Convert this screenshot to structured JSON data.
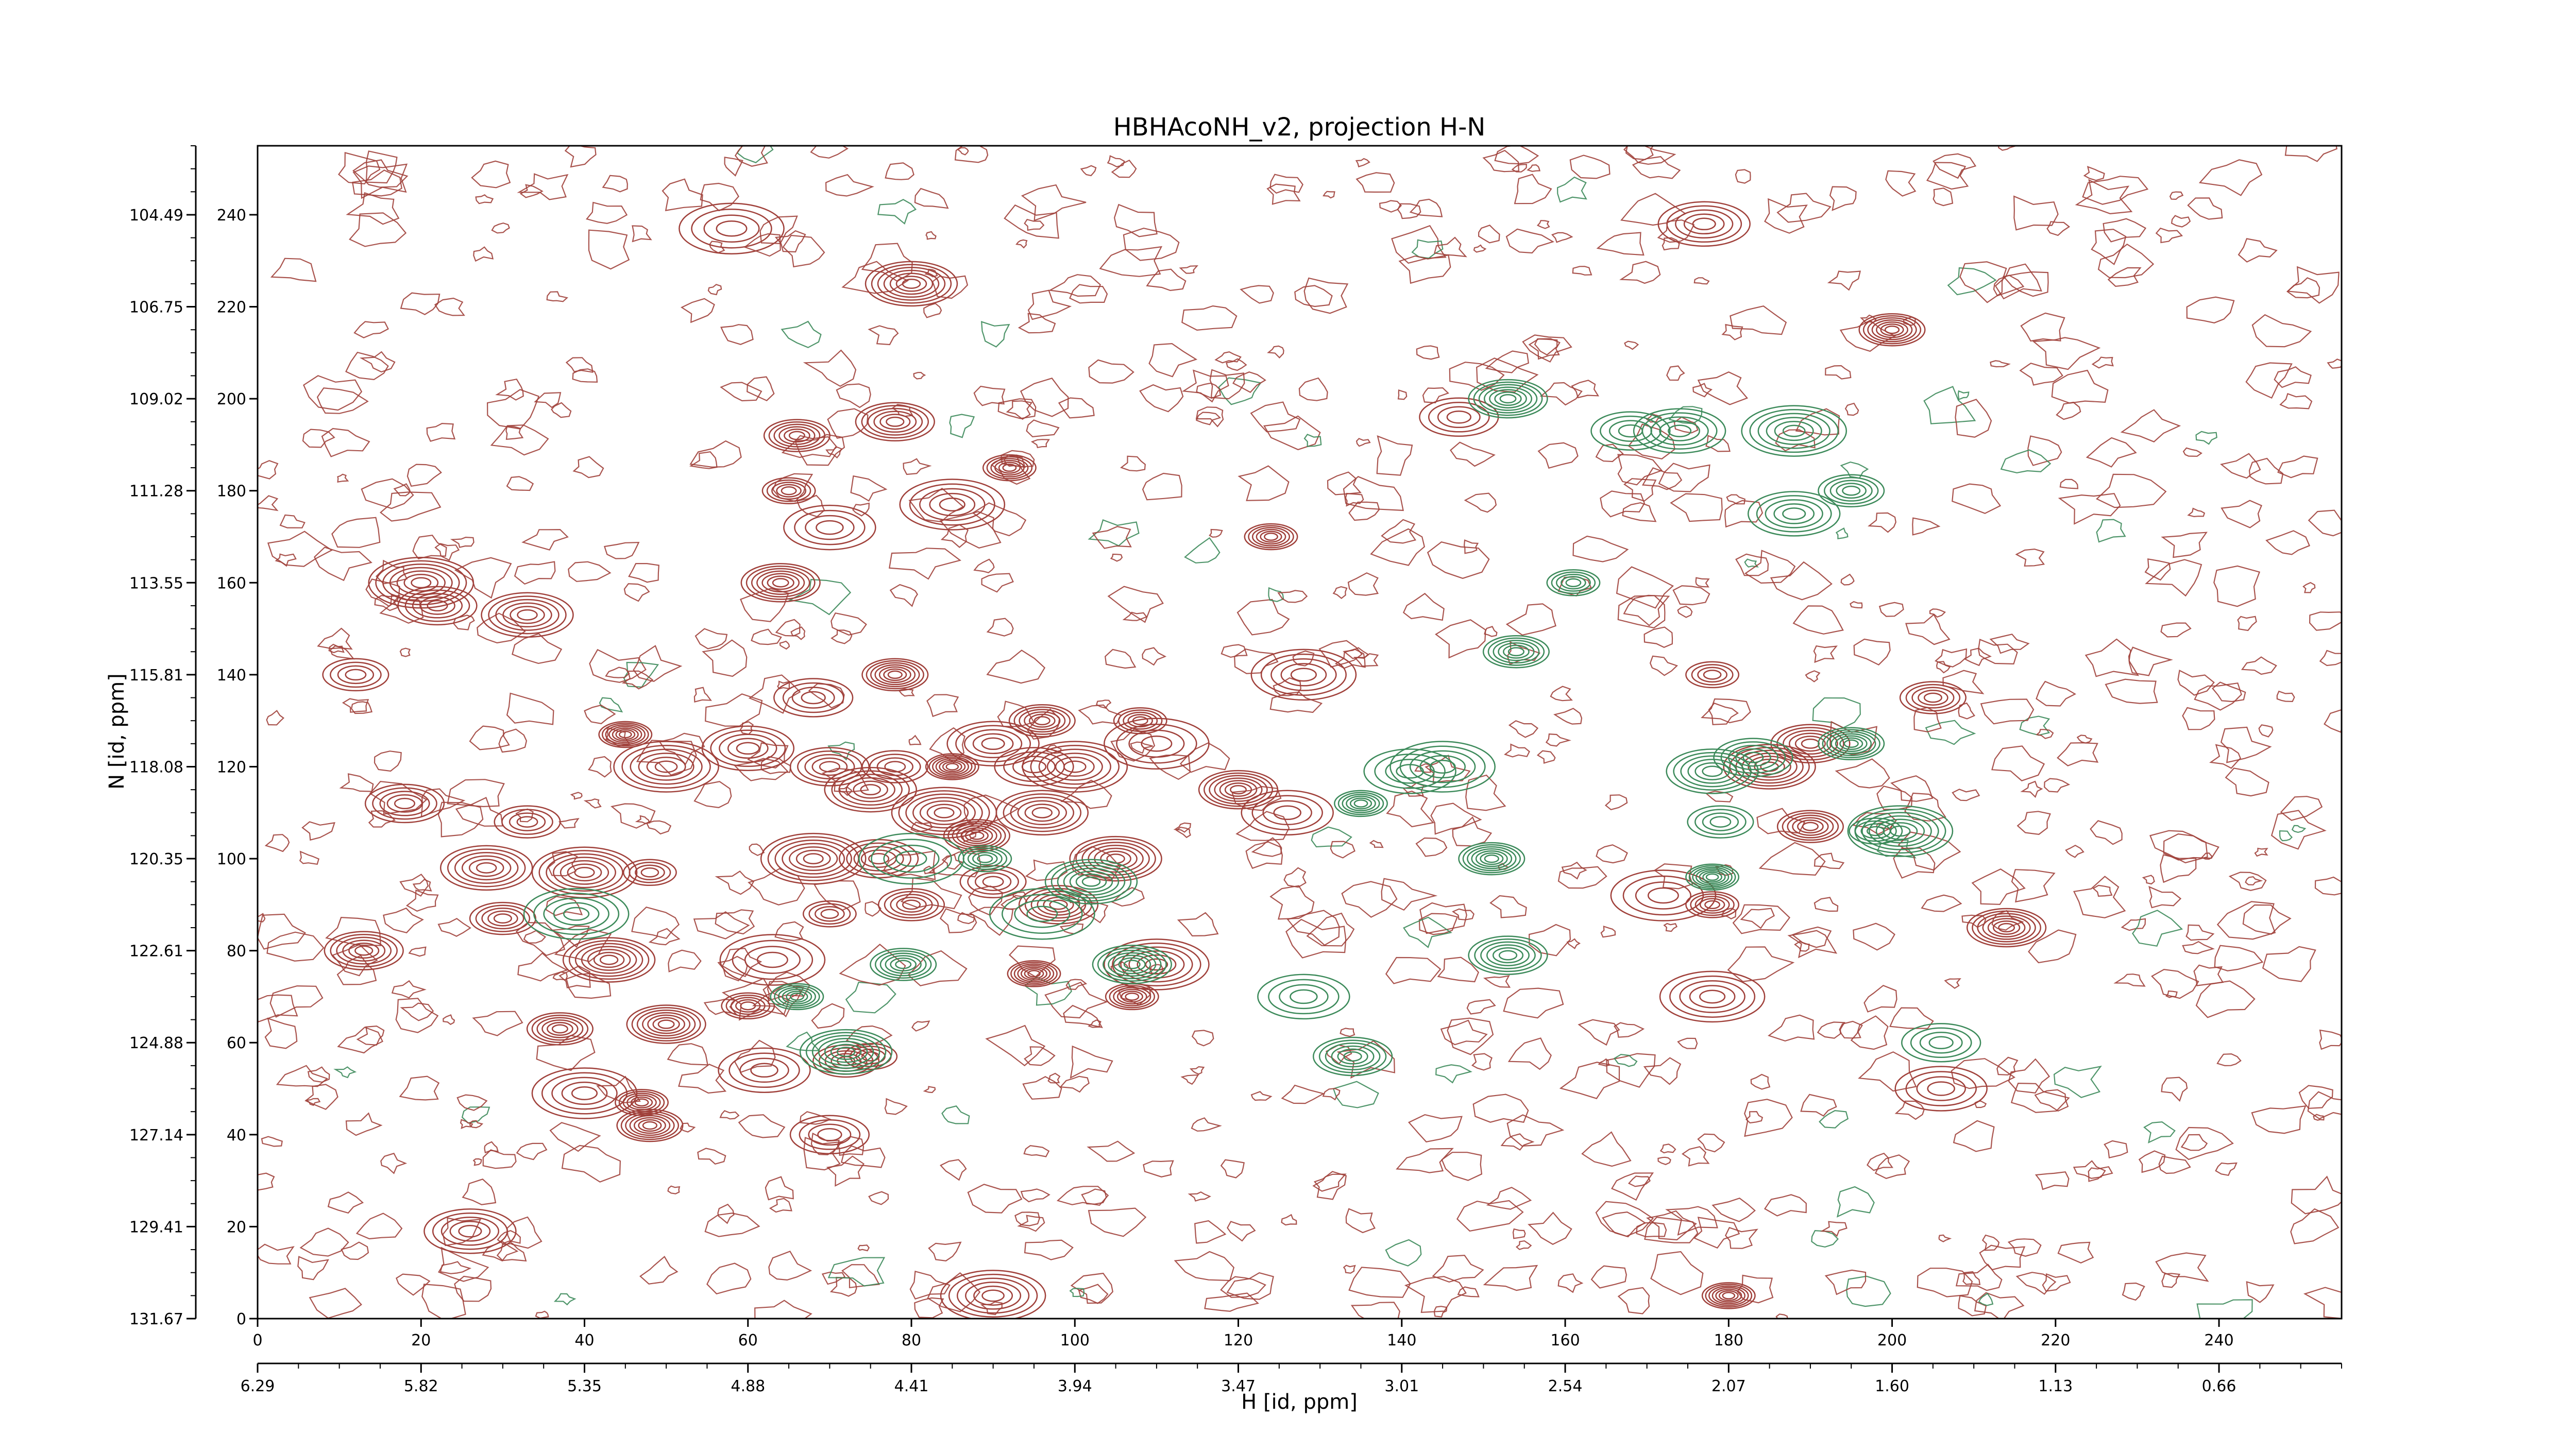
{
  "chart_data": {
    "type": "contour",
    "title": "HBHAcoNH_v2, projection H-N",
    "xlabel": "H [id, ppm]",
    "ylabel": "N [id, ppm]",
    "x_index_ticks": [
      0,
      20,
      40,
      60,
      80,
      100,
      120,
      140,
      160,
      180,
      200,
      220,
      240
    ],
    "x_ppm_ticks": [
      "6.29",
      "5.82",
      "5.35",
      "4.88",
      "4.41",
      "3.94",
      "3.47",
      "3.01",
      "2.54",
      "2.07",
      "1.60",
      "1.13",
      "0.66"
    ],
    "y_index_ticks": [
      0,
      20,
      40,
      60,
      80,
      100,
      120,
      140,
      160,
      180,
      200,
      220,
      240
    ],
    "y_ppm_ticks": [
      "131.67",
      "129.41",
      "127.14",
      "124.88",
      "122.61",
      "120.35",
      "118.08",
      "115.81",
      "113.55",
      "111.28",
      "109.02",
      "106.75",
      "104.49"
    ],
    "xlim": [
      0,
      255
    ],
    "ylim": [
      0,
      255
    ],
    "positive_color": "#a0403a",
    "negative_color": "#3c8a5a",
    "positive_peaks": [
      {
        "x": 75,
        "y": 57
      },
      {
        "x": 72,
        "y": 56
      },
      {
        "x": 78,
        "y": 195
      },
      {
        "x": 80,
        "y": 225
      },
      {
        "x": 58,
        "y": 237
      },
      {
        "x": 65,
        "y": 180
      },
      {
        "x": 66,
        "y": 192
      },
      {
        "x": 64,
        "y": 160
      },
      {
        "x": 70,
        "y": 172
      },
      {
        "x": 85,
        "y": 177
      },
      {
        "x": 92,
        "y": 185
      },
      {
        "x": 88,
        "y": 105
      },
      {
        "x": 95,
        "y": 120
      },
      {
        "x": 90,
        "y": 125
      },
      {
        "x": 100,
        "y": 120
      },
      {
        "x": 85,
        "y": 120
      },
      {
        "x": 78,
        "y": 120
      },
      {
        "x": 70,
        "y": 120
      },
      {
        "x": 75,
        "y": 115
      },
      {
        "x": 68,
        "y": 100
      },
      {
        "x": 70,
        "y": 88
      },
      {
        "x": 80,
        "y": 90
      },
      {
        "x": 98,
        "y": 90
      },
      {
        "x": 105,
        "y": 100
      },
      {
        "x": 110,
        "y": 125
      },
      {
        "x": 108,
        "y": 130
      },
      {
        "x": 96,
        "y": 130
      },
      {
        "x": 120,
        "y": 115
      },
      {
        "x": 126,
        "y": 110
      },
      {
        "x": 128,
        "y": 140
      },
      {
        "x": 124,
        "y": 170
      },
      {
        "x": 78,
        "y": 140
      },
      {
        "x": 68,
        "y": 135
      },
      {
        "x": 60,
        "y": 124
      },
      {
        "x": 50,
        "y": 120
      },
      {
        "x": 45,
        "y": 127
      },
      {
        "x": 33,
        "y": 108
      },
      {
        "x": 18,
        "y": 112
      },
      {
        "x": 28,
        "y": 98
      },
      {
        "x": 40,
        "y": 97
      },
      {
        "x": 48,
        "y": 97
      },
      {
        "x": 30,
        "y": 87
      },
      {
        "x": 13,
        "y": 80
      },
      {
        "x": 43,
        "y": 78
      },
      {
        "x": 63,
        "y": 78
      },
      {
        "x": 60,
        "y": 68
      },
      {
        "x": 37,
        "y": 63
      },
      {
        "x": 50,
        "y": 64
      },
      {
        "x": 62,
        "y": 54
      },
      {
        "x": 40,
        "y": 49
      },
      {
        "x": 47,
        "y": 47
      },
      {
        "x": 48,
        "y": 42
      },
      {
        "x": 70,
        "y": 40
      },
      {
        "x": 26,
        "y": 19
      },
      {
        "x": 90,
        "y": 5
      },
      {
        "x": 180,
        "y": 5
      },
      {
        "x": 12,
        "y": 140
      },
      {
        "x": 22,
        "y": 155
      },
      {
        "x": 33,
        "y": 153
      },
      {
        "x": 20,
        "y": 160
      },
      {
        "x": 178,
        "y": 140
      },
      {
        "x": 205,
        "y": 135
      },
      {
        "x": 190,
        "y": 125
      },
      {
        "x": 185,
        "y": 120
      },
      {
        "x": 172,
        "y": 92
      },
      {
        "x": 178,
        "y": 90
      },
      {
        "x": 190,
        "y": 107
      },
      {
        "x": 214,
        "y": 85
      },
      {
        "x": 206,
        "y": 50
      },
      {
        "x": 178,
        "y": 70
      },
      {
        "x": 107,
        "y": 70
      },
      {
        "x": 200,
        "y": 215
      },
      {
        "x": 147,
        "y": 196
      },
      {
        "x": 177,
        "y": 238
      },
      {
        "x": 110,
        "y": 77
      },
      {
        "x": 95,
        "y": 75
      },
      {
        "x": 90,
        "y": 95
      },
      {
        "x": 76,
        "y": 100
      },
      {
        "x": 96,
        "y": 110
      },
      {
        "x": 84,
        "y": 110
      }
    ],
    "negative_peaks": [
      {
        "x": 134,
        "y": 57
      },
      {
        "x": 72,
        "y": 58
      },
      {
        "x": 80,
        "y": 100
      },
      {
        "x": 89,
        "y": 100
      },
      {
        "x": 79,
        "y": 77
      },
      {
        "x": 107,
        "y": 77
      },
      {
        "x": 141,
        "y": 119
      },
      {
        "x": 145,
        "y": 120
      },
      {
        "x": 135,
        "y": 112
      },
      {
        "x": 151,
        "y": 100
      },
      {
        "x": 168,
        "y": 193
      },
      {
        "x": 174,
        "y": 193
      },
      {
        "x": 188,
        "y": 193
      },
      {
        "x": 178,
        "y": 96
      },
      {
        "x": 179,
        "y": 108
      },
      {
        "x": 183,
        "y": 122
      },
      {
        "x": 178,
        "y": 119
      },
      {
        "x": 201,
        "y": 106
      },
      {
        "x": 198,
        "y": 106
      },
      {
        "x": 195,
        "y": 180
      },
      {
        "x": 153,
        "y": 79
      },
      {
        "x": 102,
        "y": 95
      },
      {
        "x": 96,
        "y": 88
      },
      {
        "x": 161,
        "y": 160
      },
      {
        "x": 154,
        "y": 145
      },
      {
        "x": 153,
        "y": 200
      },
      {
        "x": 128,
        "y": 70
      },
      {
        "x": 39,
        "y": 88
      },
      {
        "x": 66,
        "y": 70
      },
      {
        "x": 195,
        "y": 125
      },
      {
        "x": 206,
        "y": 60
      },
      {
        "x": 188,
        "y": 175
      }
    ]
  }
}
